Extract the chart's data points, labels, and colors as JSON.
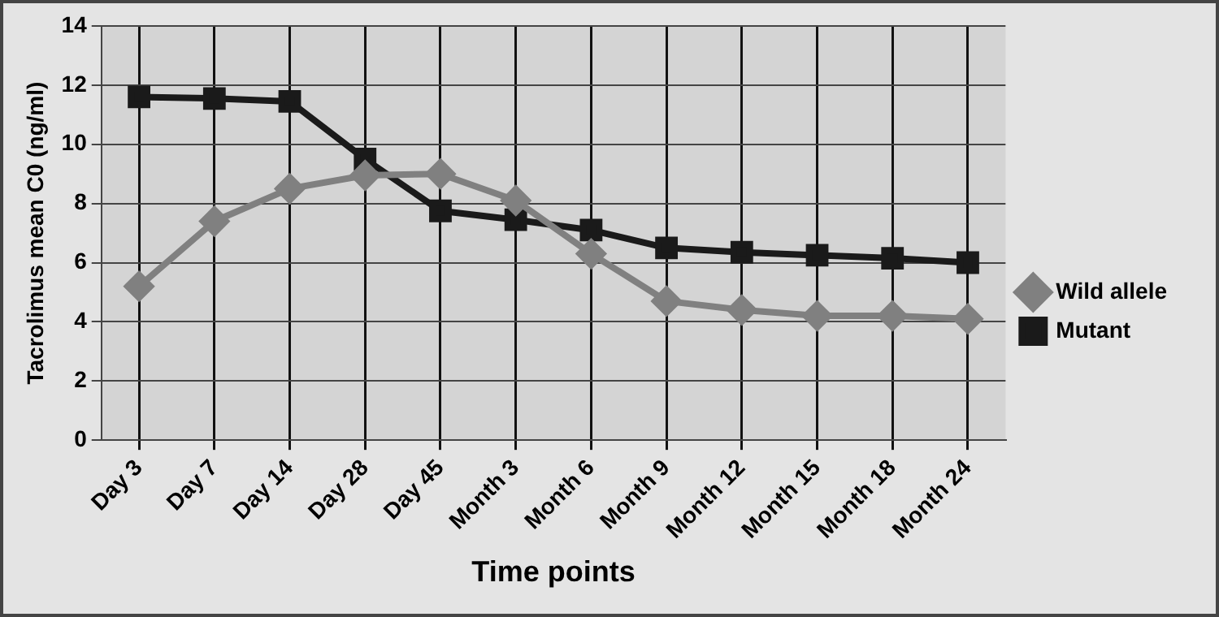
{
  "chart_data": {
    "type": "line",
    "xlabel": "Time points",
    "ylabel": "Tacrolimus mean C0 (ng/ml)",
    "categories": [
      "Day 3",
      "Day 7",
      "Day 14",
      "Day 28",
      "Day 45",
      "Month 3",
      "Month 6",
      "Month 9",
      "Month 12",
      "Month 15",
      "Month 18",
      "Month 24"
    ],
    "series": [
      {
        "name": "Wild allele",
        "color": "#808080",
        "marker": "diamond",
        "values": [
          5.2,
          7.4,
          8.5,
          8.95,
          9.0,
          8.1,
          6.3,
          4.7,
          4.4,
          4.2,
          4.2,
          4.1
        ]
      },
      {
        "name": "Mutant",
        "color": "#1a1a1a",
        "marker": "square",
        "values": [
          11.6,
          11.55,
          11.45,
          9.5,
          7.75,
          7.45,
          7.1,
          6.5,
          6.35,
          6.25,
          6.15,
          6.0
        ]
      }
    ],
    "ylim": [
      0,
      14
    ],
    "yticks": [
      0,
      2,
      4,
      6,
      8,
      10,
      12,
      14
    ],
    "grid": true,
    "legend": "right"
  }
}
